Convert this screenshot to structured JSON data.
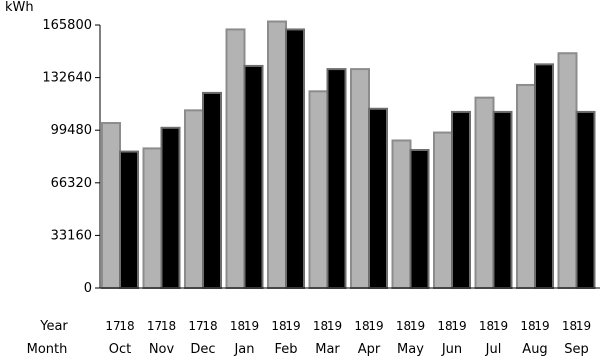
{
  "chart_data": {
    "type": "bar",
    "unit": "kWh",
    "ylim": [
      0,
      165800
    ],
    "yticks": [
      0,
      33160,
      66320,
      99480,
      132640,
      165800
    ],
    "row_labels": {
      "year": "Year",
      "month": "Month"
    },
    "categories": [
      "Oct",
      "Nov",
      "Dec",
      "Jan",
      "Feb",
      "Mar",
      "Apr",
      "May",
      "Jun",
      "Jul",
      "Aug",
      "Sep"
    ],
    "year_labels": [
      [
        "17",
        "18"
      ],
      [
        "17",
        "18"
      ],
      [
        "17",
        "18"
      ],
      [
        "18",
        "19"
      ],
      [
        "18",
        "19"
      ],
      [
        "18",
        "19"
      ],
      [
        "18",
        "19"
      ],
      [
        "18",
        "19"
      ],
      [
        "18",
        "19"
      ],
      [
        "18",
        "19"
      ],
      [
        "18",
        "19"
      ],
      [
        "18",
        "19"
      ]
    ],
    "series": [
      {
        "values": [
          104000,
          88000,
          112000,
          163000,
          168000,
          124000,
          138000,
          93000,
          98000,
          120000,
          128000,
          148000
        ]
      },
      {
        "values": [
          86000,
          101000,
          123000,
          140000,
          163000,
          138000,
          113000,
          87000,
          111000,
          111000,
          141000,
          111000
        ]
      }
    ],
    "colors": {
      "previous_year_fill": "#b3b3b3",
      "previous_year_stroke": "#8c8c8c",
      "current_year_fill": "#000000",
      "current_year_stroke": "#6e6e6e"
    }
  }
}
